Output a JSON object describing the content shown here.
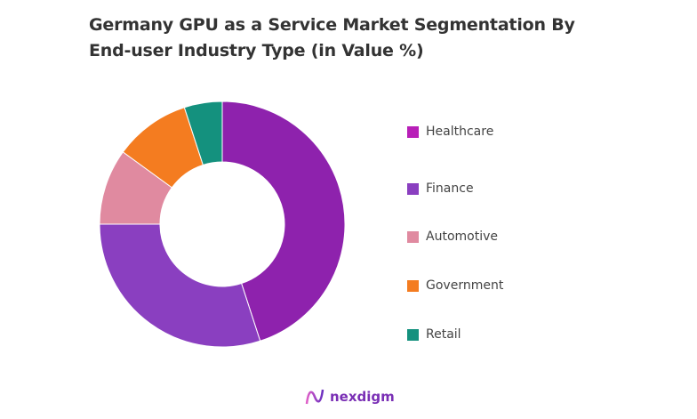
{
  "chart_data": {
    "type": "pie",
    "donut": true,
    "title_lines": [
      "Germany GPU as a Service Market Segmentation By",
      "End-user Industry Type (in Value %)"
    ],
    "categories": [
      "Healthcare",
      "Finance",
      "Automotive",
      "Government",
      "Retail"
    ],
    "values": [
      45,
      30,
      10,
      10,
      5
    ],
    "slice_colors": [
      "#8e22ad",
      "#8a3fc0",
      "#e08aa0",
      "#f47c20",
      "#14917e"
    ],
    "legend_colors": [
      "#b81fb8",
      "#8a3fc0",
      "#e08aa0",
      "#f47c20",
      "#14917e"
    ],
    "legend_position": "right",
    "start_angle": "top, clockwise"
  },
  "brand": {
    "logo_text": "nexdigm"
  }
}
